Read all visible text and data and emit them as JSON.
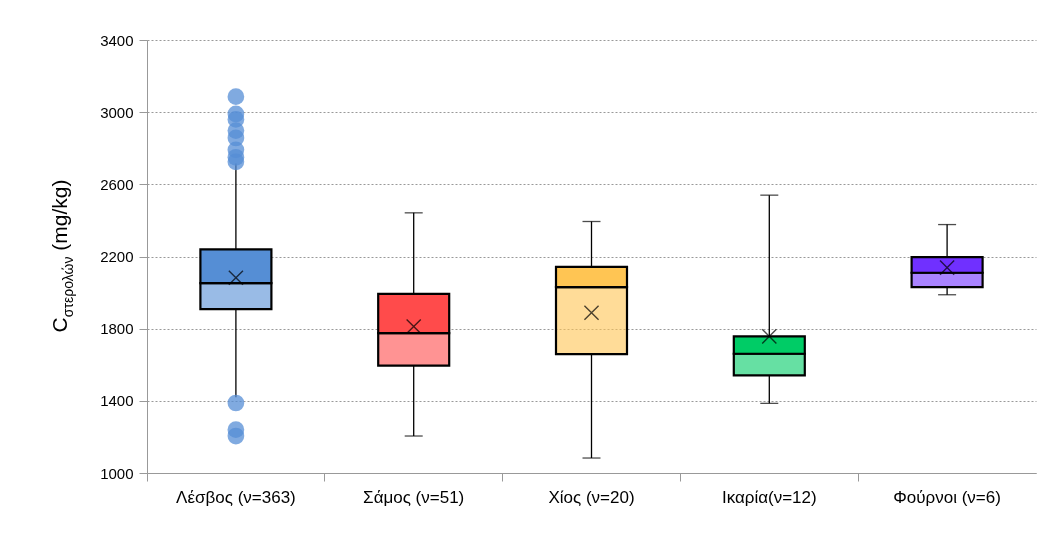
{
  "chart_data": {
    "type": "box",
    "ylabel": "C$_{στερολών}$ (mg/kg)",
    "categories": [
      "Λέσβος (ν=363)",
      "Σάμος (ν=51)",
      "Χίος (ν=20)",
      "Ικαρία(ν=12)",
      "Φούρνοι (ν=6)"
    ],
    "colors": [
      "#558ed5",
      "#ff4b4b",
      "#ffc553",
      "#00cc66",
      "#7030ff"
    ],
    "boxes": [
      {
        "low": 1420,
        "q1": 1908,
        "median": 2052,
        "q3": 2239,
        "high": 2715,
        "mean": 2082,
        "outliers": [
          3086,
          2990,
          2960,
          2898,
          2857,
          2791,
          2750,
          2725,
          1388,
          1240,
          1205
        ]
      },
      {
        "low": 1205,
        "q1": 1595,
        "median": 1775,
        "q3": 1993,
        "high": 2442,
        "mean": 1812
      },
      {
        "low": 1083,
        "q1": 1659,
        "median": 2030,
        "q3": 2143,
        "high": 2394,
        "mean": 1888
      },
      {
        "low": 1386,
        "q1": 1541,
        "median": 1661,
        "q3": 1757,
        "high": 2540,
        "mean": 1757
      },
      {
        "low": 1988,
        "q1": 2030,
        "median": 2110,
        "q3": 2196,
        "high": 2377,
        "mean": 2138
      }
    ],
    "ylim": [
      1000,
      3400
    ],
    "yticks": [
      1000,
      1400,
      1800,
      2200,
      2600,
      3000,
      3400
    ],
    "grid": "y"
  }
}
